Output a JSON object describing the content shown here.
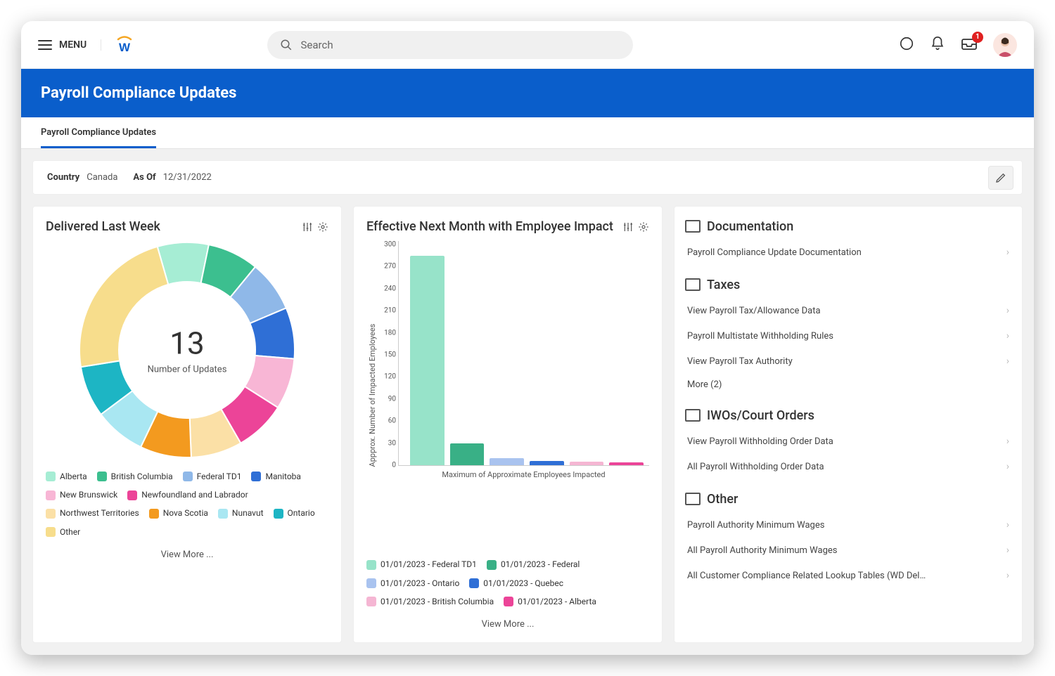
{
  "header": {
    "menu_label": "MENU",
    "search_placeholder": "Search",
    "inbox_badge": "1"
  },
  "banner": {
    "title": "Payroll Compliance Updates"
  },
  "tabs": [
    {
      "label": "Payroll Compliance Updates"
    }
  ],
  "filter": {
    "country_label": "Country",
    "country_value": "Canada",
    "asof_label": "As Of",
    "asof_value": "12/31/2022"
  },
  "card_donut": {
    "title": "Delivered Last Week",
    "center_value": "13",
    "center_label": "Number of Updates",
    "view_more": "View More ...",
    "type": "donut",
    "segments": [
      {
        "label": "Alberta",
        "color": "#a6edd4",
        "value": 1
      },
      {
        "label": "British Columbia",
        "color": "#3cbf8f",
        "value": 1
      },
      {
        "label": "Federal TD1",
        "color": "#8fb8e8",
        "value": 1
      },
      {
        "label": "Manitoba",
        "color": "#2f6fd6",
        "value": 1
      },
      {
        "label": "New Brunswick",
        "color": "#f8b6d5",
        "value": 1
      },
      {
        "label": "Newfoundland and Labrador",
        "color": "#ec4498",
        "value": 1
      },
      {
        "label": "Northwest Territories",
        "color": "#fbe0a6",
        "value": 1
      },
      {
        "label": "Nova Scotia",
        "color": "#f39a1f",
        "value": 1
      },
      {
        "label": "Nunavut",
        "color": "#a9e7f2",
        "value": 1
      },
      {
        "label": "Ontario",
        "color": "#1db5c4",
        "value": 1
      },
      {
        "label": "Other",
        "color": "#f7dd8c",
        "value": 3
      }
    ],
    "donut_size": 310,
    "donut_thickness": 56,
    "label_fontsize": 12
  },
  "card_bar": {
    "title": "Effective Next Month with Employee Impact",
    "view_more": "View More ...",
    "type": "bar",
    "ylabel": "Appprox. Number of Impacted Employees",
    "xlabel": "Maximum of Approximate Employees Impacted",
    "ylim": [
      0,
      300
    ],
    "ytick_step": 30,
    "yticks": [
      "300",
      "270",
      "240",
      "210",
      "180",
      "150",
      "120",
      "90",
      "60",
      "30",
      "0"
    ],
    "bar_width_ratio": 1,
    "bar_gap": 8,
    "axis_color": "#ccc",
    "text_color": "#555",
    "label_fontsize": 11,
    "bars": [
      {
        "label": "01/01/2023 - Federal TD1",
        "color": "#97e3c9",
        "value": 285
      },
      {
        "label": "01/01/2023 - Federal",
        "color": "#39b086",
        "value": 30
      },
      {
        "label": "01/01/2023 - Ontario",
        "color": "#a9c3ef",
        "value": 10
      },
      {
        "label": "01/01/2023 - Quebec",
        "color": "#2f6fd6",
        "value": 6
      },
      {
        "label": "01/01/2023 - British Columbia",
        "color": "#f5b6d3",
        "value": 5
      },
      {
        "label": "01/01/2023 - Alberta",
        "color": "#ec4498",
        "value": 4
      }
    ]
  },
  "rightcol": {
    "groups": [
      {
        "title": "Documentation",
        "items": [
          {
            "label": "Payroll Compliance Update Documentation"
          }
        ]
      },
      {
        "title": "Taxes",
        "items": [
          {
            "label": "View Payroll Tax/Allowance Data"
          },
          {
            "label": "Payroll Multistate Withholding Rules"
          },
          {
            "label": "View Payroll Tax Authority"
          }
        ],
        "more": "More (2)"
      },
      {
        "title": "IWOs/Court Orders",
        "items": [
          {
            "label": "View Payroll Withholding Order Data"
          },
          {
            "label": "All Payroll Withholding Order Data"
          }
        ]
      },
      {
        "title": "Other",
        "items": [
          {
            "label": "Payroll Authority Minimum Wages"
          },
          {
            "label": "All Payroll Authority Minimum Wages"
          },
          {
            "label": "All Customer Compliance Related Lookup Tables (WD Del..."
          }
        ]
      }
    ]
  },
  "colors": {
    "brand_blue": "#0a5ecb",
    "page_bg": "#f1f1f1",
    "card_border": "#eeeeee",
    "text_primary": "#333333",
    "text_secondary": "#555555",
    "badge_red": "#e02020"
  }
}
